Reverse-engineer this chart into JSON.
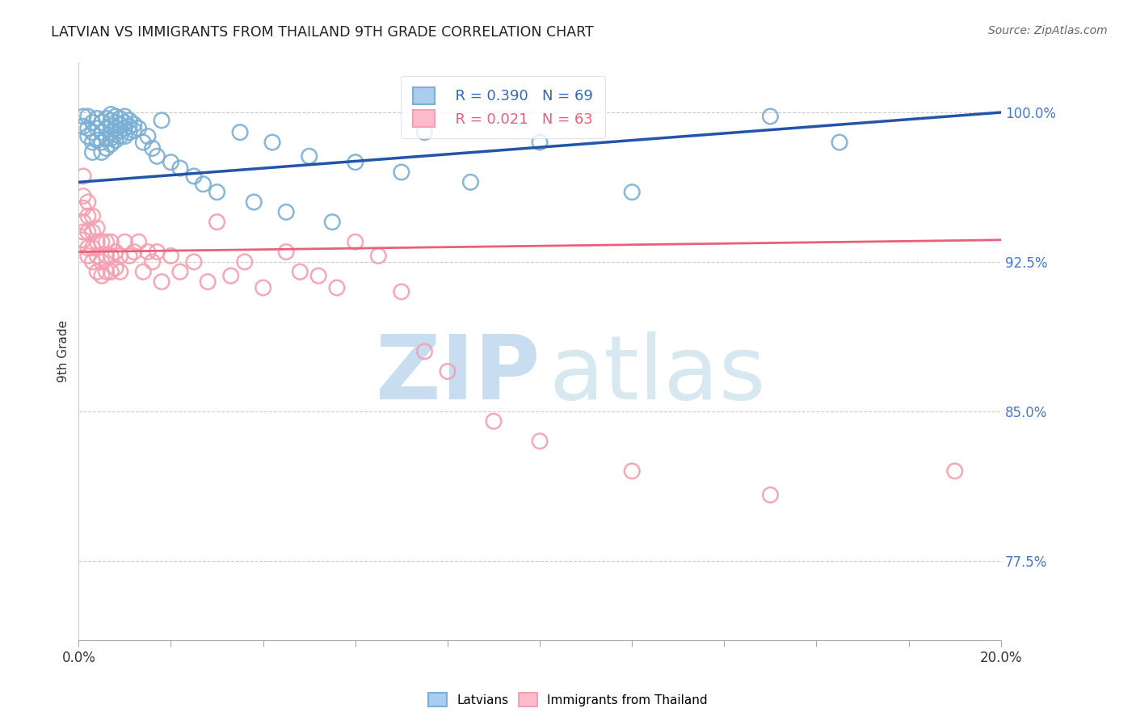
{
  "title": "LATVIAN VS IMMIGRANTS FROM THAILAND 9TH GRADE CORRELATION CHART",
  "source": "Source: ZipAtlas.com",
  "ylabel": "9th Grade",
  "right_yticks": [
    "100.0%",
    "92.5%",
    "85.0%",
    "77.5%"
  ],
  "right_ytick_vals": [
    1.0,
    0.925,
    0.85,
    0.775
  ],
  "xlim": [
    0.0,
    0.2
  ],
  "ylim": [
    0.735,
    1.025
  ],
  "legend_blue_R": "R = 0.390",
  "legend_blue_N": "N = 69",
  "legend_pink_R": "R = 0.021",
  "legend_pink_N": "N = 63",
  "blue_color": "#7BAFD4",
  "pink_color": "#F4A0B0",
  "blue_line_color": "#2255AA",
  "pink_line_color": "#E8607A",
  "blue_trend_x0": 0.0,
  "blue_trend_y0": 0.965,
  "blue_trend_x1": 0.2,
  "blue_trend_y1": 1.0,
  "pink_trend_x0": 0.0,
  "pink_trend_y0": 0.93,
  "pink_trend_x1": 0.2,
  "pink_trend_y1": 0.936,
  "blue_points_x": [
    0.001,
    0.001,
    0.002,
    0.002,
    0.002,
    0.003,
    0.003,
    0.003,
    0.003,
    0.004,
    0.004,
    0.004,
    0.005,
    0.005,
    0.005,
    0.005,
    0.006,
    0.006,
    0.006,
    0.006,
    0.007,
    0.007,
    0.007,
    0.007,
    0.007,
    0.007,
    0.008,
    0.008,
    0.008,
    0.008,
    0.008,
    0.009,
    0.009,
    0.009,
    0.009,
    0.01,
    0.01,
    0.01,
    0.01,
    0.011,
    0.011,
    0.011,
    0.012,
    0.012,
    0.013,
    0.014,
    0.015,
    0.016,
    0.017,
    0.018,
    0.02,
    0.022,
    0.025,
    0.027,
    0.03,
    0.035,
    0.038,
    0.042,
    0.045,
    0.05,
    0.055,
    0.06,
    0.07,
    0.075,
    0.085,
    0.1,
    0.12,
    0.15,
    0.165
  ],
  "blue_points_y": [
    0.998,
    0.993,
    0.998,
    0.992,
    0.988,
    0.995,
    0.99,
    0.985,
    0.98,
    0.997,
    0.992,
    0.986,
    0.995,
    0.99,
    0.985,
    0.98,
    0.997,
    0.992,
    0.987,
    0.982,
    0.999,
    0.996,
    0.993,
    0.99,
    0.987,
    0.984,
    0.998,
    0.995,
    0.992,
    0.989,
    0.986,
    0.997,
    0.994,
    0.991,
    0.988,
    0.998,
    0.995,
    0.992,
    0.988,
    0.996,
    0.993,
    0.99,
    0.994,
    0.991,
    0.992,
    0.985,
    0.988,
    0.982,
    0.978,
    0.996,
    0.975,
    0.972,
    0.968,
    0.964,
    0.96,
    0.99,
    0.955,
    0.985,
    0.95,
    0.978,
    0.945,
    0.975,
    0.97,
    0.99,
    0.965,
    0.985,
    0.96,
    0.998,
    0.985
  ],
  "pink_points_x": [
    0.001,
    0.001,
    0.001,
    0.001,
    0.001,
    0.001,
    0.002,
    0.002,
    0.002,
    0.002,
    0.002,
    0.003,
    0.003,
    0.003,
    0.003,
    0.004,
    0.004,
    0.004,
    0.004,
    0.005,
    0.005,
    0.005,
    0.006,
    0.006,
    0.006,
    0.007,
    0.007,
    0.007,
    0.008,
    0.008,
    0.009,
    0.009,
    0.01,
    0.011,
    0.012,
    0.013,
    0.014,
    0.015,
    0.016,
    0.017,
    0.018,
    0.02,
    0.022,
    0.025,
    0.028,
    0.03,
    0.033,
    0.036,
    0.04,
    0.045,
    0.048,
    0.052,
    0.056,
    0.06,
    0.065,
    0.07,
    0.075,
    0.08,
    0.09,
    0.1,
    0.12,
    0.15,
    0.19
  ],
  "pink_points_y": [
    0.968,
    0.958,
    0.952,
    0.945,
    0.94,
    0.936,
    0.955,
    0.948,
    0.94,
    0.932,
    0.928,
    0.948,
    0.94,
    0.932,
    0.925,
    0.942,
    0.935,
    0.928,
    0.92,
    0.935,
    0.925,
    0.918,
    0.935,
    0.928,
    0.92,
    0.935,
    0.928,
    0.92,
    0.93,
    0.922,
    0.928,
    0.92,
    0.935,
    0.928,
    0.93,
    0.935,
    0.92,
    0.93,
    0.925,
    0.93,
    0.915,
    0.928,
    0.92,
    0.925,
    0.915,
    0.945,
    0.918,
    0.925,
    0.912,
    0.93,
    0.92,
    0.918,
    0.912,
    0.935,
    0.928,
    0.91,
    0.88,
    0.87,
    0.845,
    0.835,
    0.82,
    0.808,
    0.82
  ]
}
